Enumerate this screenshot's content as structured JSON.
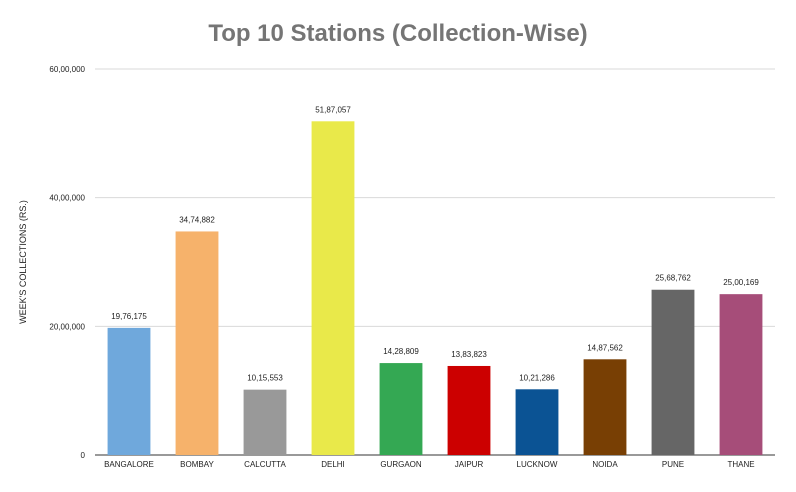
{
  "chart_data": {
    "type": "bar",
    "title": "Top 10 Stations (Collection-Wise)",
    "xlabel": "",
    "ylabel": "WEEK'S COLLECTIONS (RS.)",
    "ylim": [
      0,
      6000000
    ],
    "yticks": [
      {
        "value": 0,
        "label": "0"
      },
      {
        "value": 2000000,
        "label": "20,00,000"
      },
      {
        "value": 4000000,
        "label": "40,00,000"
      },
      {
        "value": 6000000,
        "label": "60,00,000"
      }
    ],
    "grid": true,
    "categories": [
      "BANGALORE",
      "BOMBAY",
      "CALCUTTA",
      "DELHI",
      "GURGAON",
      "JAIPUR",
      "LUCKNOW",
      "NOIDA",
      "PUNE",
      "THANE"
    ],
    "values": [
      1976175,
      3474882,
      1015553,
      5187057,
      1428809,
      1383823,
      1021286,
      1487562,
      2568762,
      2500169
    ],
    "value_labels": [
      "19,76,175",
      "34,74,882",
      "10,15,553",
      "51,87,057",
      "14,28,809",
      "13,83,823",
      "10,21,286",
      "14,87,562",
      "25,68,762",
      "25,00,169"
    ],
    "colors": [
      "#6fa8dc",
      "#f6b26b",
      "#999999",
      "#e9e94a",
      "#34a853",
      "#cc0000",
      "#0b5394",
      "#783f04",
      "#666666",
      "#a64d79"
    ]
  }
}
